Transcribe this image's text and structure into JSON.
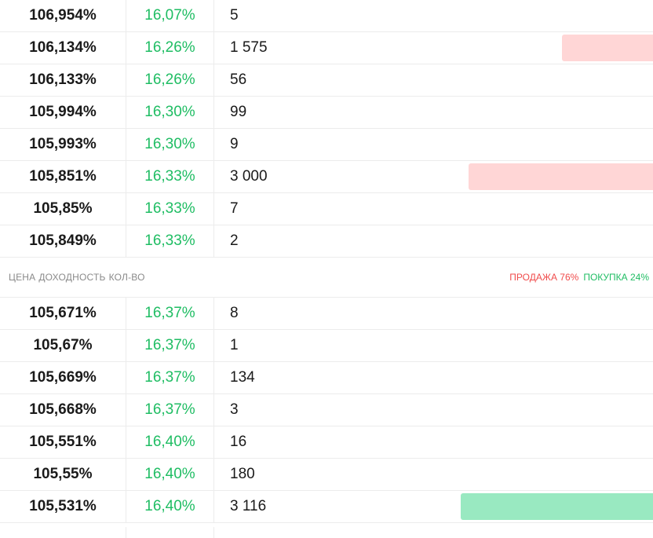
{
  "order_book": {
    "asks": [
      {
        "price": "106,954%",
        "yield": "16,07%",
        "qty": "5",
        "depth": 0
      },
      {
        "price": "106,134%",
        "yield": "16,26%",
        "qty": "1 575",
        "depth": 0.14
      },
      {
        "price": "106,133%",
        "yield": "16,26%",
        "qty": "56",
        "depth": 0
      },
      {
        "price": "105,994%",
        "yield": "16,30%",
        "qty": "99",
        "depth": 0
      },
      {
        "price": "105,993%",
        "yield": "16,30%",
        "qty": "9",
        "depth": 0
      },
      {
        "price": "105,851%",
        "yield": "16,33%",
        "qty": "3 000",
        "depth": 0.283
      },
      {
        "price": "105,85%",
        "yield": "16,33%",
        "qty": "7",
        "depth": 0
      },
      {
        "price": "105,849%",
        "yield": "16,33%",
        "qty": "2",
        "depth": 0
      }
    ],
    "headers": {
      "price": "ЦЕНА",
      "yield": "ДОХОДНОСТЬ",
      "qty": "КОЛ-ВО"
    },
    "ratio": {
      "sell": "ПРОДАЖА 76%",
      "buy": "ПОКУПКА 24%"
    },
    "bids": [
      {
        "price": "105,671%",
        "yield": "16,37%",
        "qty": "8",
        "depth": 0
      },
      {
        "price": "105,67%",
        "yield": "16,37%",
        "qty": "1",
        "depth": 0
      },
      {
        "price": "105,669%",
        "yield": "16,37%",
        "qty": "134",
        "depth": 0
      },
      {
        "price": "105,668%",
        "yield": "16,37%",
        "qty": "3",
        "depth": 0
      },
      {
        "price": "105,551%",
        "yield": "16,40%",
        "qty": "16",
        "depth": 0
      },
      {
        "price": "105,55%",
        "yield": "16,40%",
        "qty": "180",
        "depth": 0
      },
      {
        "price": "105,531%",
        "yield": "16,40%",
        "qty": "3 116",
        "depth": 0.295
      }
    ],
    "colors": {
      "sell_bar": "#ffd6d6",
      "buy_bar": "#99e9c1",
      "yield_text": "#1fbd63",
      "sell_ratio": "#f04b4b",
      "buy_ratio": "#1fbd63"
    }
  }
}
